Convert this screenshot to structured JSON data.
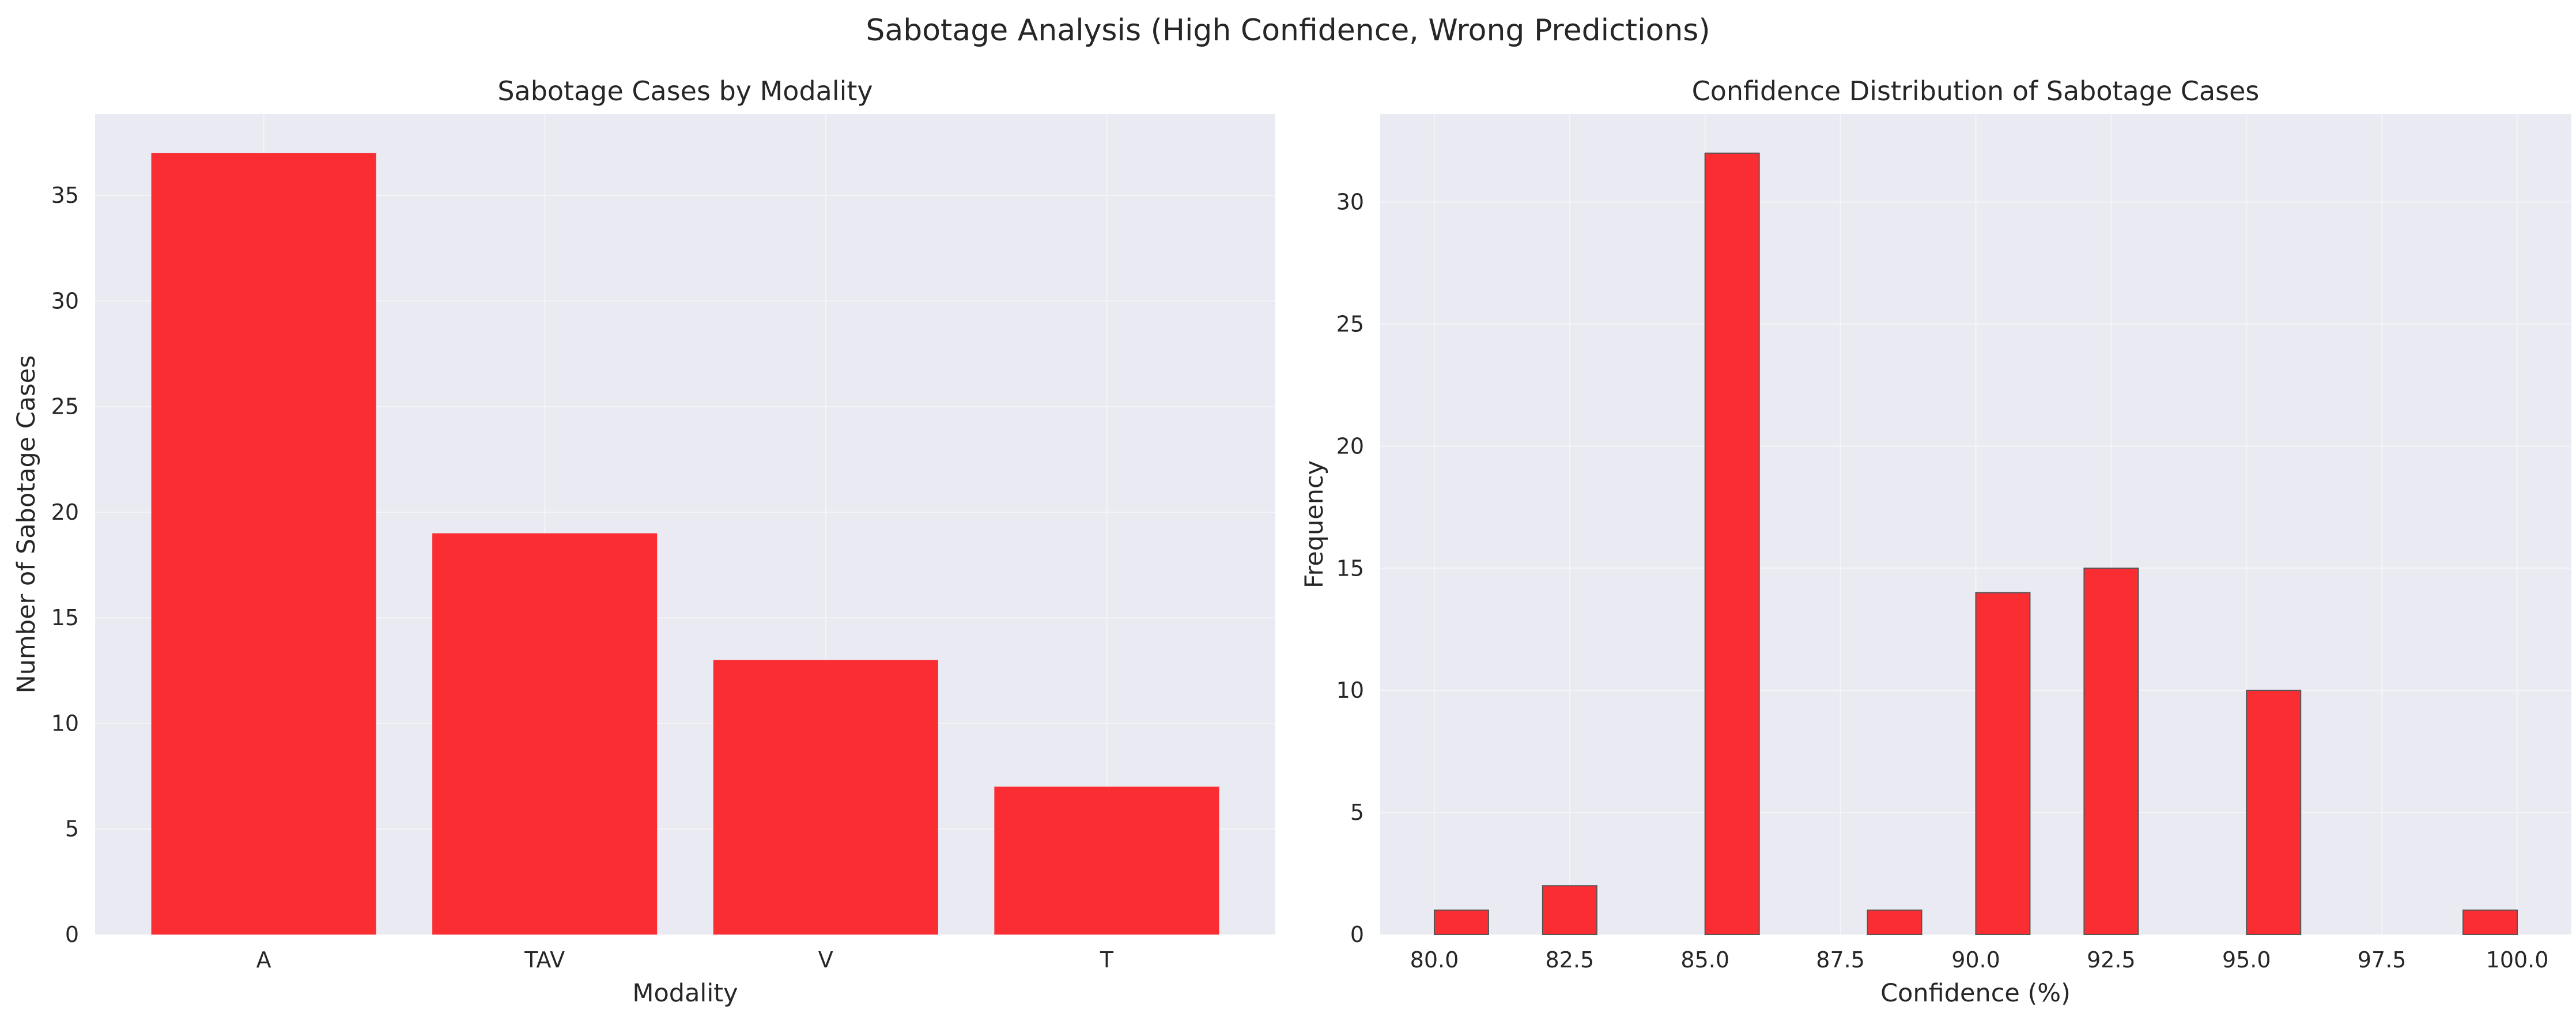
{
  "figure": {
    "title": "Sabotage Analysis (High Confidence, Wrong Predictions)"
  },
  "colors": {
    "bar": "#fa2d33",
    "bar_edge": "#555555",
    "axes_bg": "#eaeaf2",
    "grid": "#f4f4f8"
  },
  "chart_data": [
    {
      "type": "bar",
      "title": "Sabotage Cases by Modality",
      "xlabel": "Modality",
      "ylabel": "Number of Sabotage Cases",
      "categories": [
        "A",
        "TAV",
        "V",
        "T"
      ],
      "values": [
        37,
        19,
        13,
        7
      ],
      "ylim": [
        0,
        38.85
      ],
      "yticks": [
        0,
        5,
        10,
        15,
        20,
        25,
        30,
        35
      ],
      "grid": true
    },
    {
      "type": "bar",
      "subtype": "histogram",
      "title": "Confidence Distribution of Sabotage Cases",
      "xlabel": "Confidence (%)",
      "ylabel": "Frequency",
      "bin_width": 1,
      "bins": [
        {
          "start": 80,
          "end": 81,
          "count": 1
        },
        {
          "start": 82,
          "end": 83,
          "count": 2
        },
        {
          "start": 85,
          "end": 86,
          "count": 32
        },
        {
          "start": 88,
          "end": 89,
          "count": 1
        },
        {
          "start": 90,
          "end": 91,
          "count": 14
        },
        {
          "start": 92,
          "end": 93,
          "count": 15
        },
        {
          "start": 95,
          "end": 96,
          "count": 10
        },
        {
          "start": 99,
          "end": 100,
          "count": 1
        }
      ],
      "xlim": [
        79,
        101
      ],
      "ylim": [
        0,
        33.6
      ],
      "xticks": [
        "80.0",
        "82.5",
        "85.0",
        "87.5",
        "90.0",
        "92.5",
        "95.0",
        "97.5",
        "100.0"
      ],
      "yticks": [
        0,
        5,
        10,
        15,
        20,
        25,
        30
      ],
      "grid": true
    }
  ]
}
